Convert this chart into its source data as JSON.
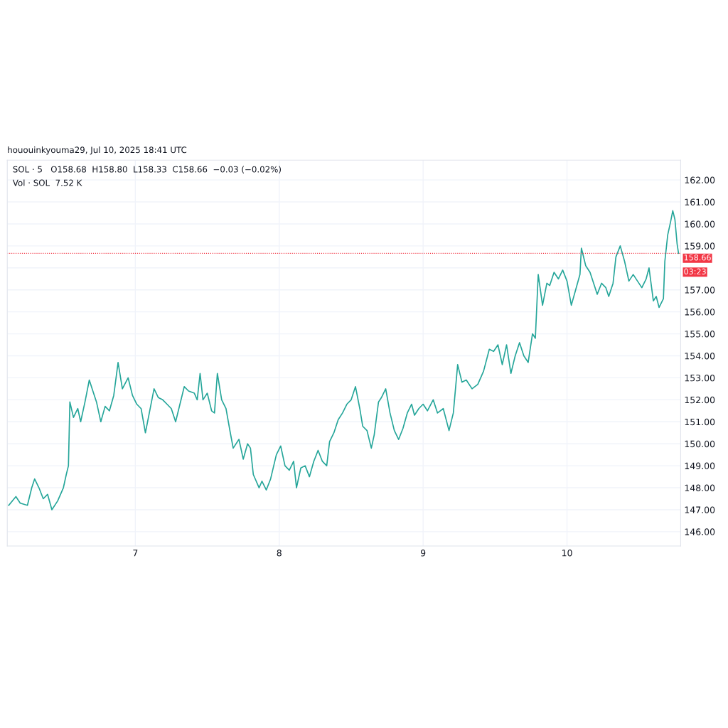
{
  "chart_data": {
    "type": "line",
    "title": "hououinkyouma29, Jul 10, 2025 18:41 UTC",
    "subtitle": "SOL · 5   O158.68  H158.80  L158.33  C158.66  −0.03 (−0.02%)",
    "annotations": [
      "Vol · SOL  7.52 K",
      "03:23"
    ],
    "x": [
      6.12,
      6.17,
      6.2,
      6.25,
      6.28,
      6.3,
      6.33,
      6.36,
      6.39,
      6.42,
      6.46,
      6.5,
      6.52,
      6.535,
      6.545,
      6.57,
      6.6,
      6.62,
      6.65,
      6.68,
      6.7,
      6.73,
      6.76,
      6.79,
      6.82,
      6.85,
      6.88,
      6.91,
      6.95,
      6.98,
      7.01,
      7.04,
      7.07,
      7.1,
      7.13,
      7.16,
      7.19,
      7.22,
      7.25,
      7.28,
      7.31,
      7.34,
      7.37,
      7.41,
      7.43,
      7.45,
      7.47,
      7.5,
      7.53,
      7.55,
      7.57,
      7.6,
      7.63,
      7.66,
      7.68,
      7.72,
      7.75,
      7.78,
      7.8,
      7.82,
      7.86,
      7.88,
      7.91,
      7.94,
      7.98,
      8.01,
      8.04,
      8.07,
      8.1,
      8.12,
      8.15,
      8.18,
      8.21,
      8.24,
      8.27,
      8.3,
      8.33,
      8.35,
      8.38,
      8.41,
      8.44,
      8.47,
      8.5,
      8.53,
      8.56,
      8.58,
      8.61,
      8.64,
      8.66,
      8.69,
      8.71,
      8.74,
      8.77,
      8.8,
      8.83,
      8.86,
      8.89,
      8.92,
      8.94,
      8.97,
      9.0,
      9.03,
      9.07,
      9.1,
      9.14,
      9.18,
      9.21,
      9.24,
      9.27,
      9.3,
      9.34,
      9.38,
      9.42,
      9.46,
      9.49,
      9.52,
      9.55,
      9.58,
      9.61,
      9.64,
      9.67,
      9.7,
      9.73,
      9.76,
      9.78,
      9.8,
      9.83,
      9.86,
      9.88,
      9.91,
      9.94,
      9.97,
      10.0,
      10.03,
      10.06,
      10.09,
      10.1,
      10.13,
      10.16,
      10.19,
      10.21,
      10.24,
      10.27,
      10.29,
      10.32,
      10.34,
      10.37,
      10.4,
      10.43,
      10.46,
      10.49,
      10.52,
      10.55,
      10.57,
      10.6,
      10.62,
      10.64,
      10.67,
      10.68,
      10.7,
      10.72,
      10.735,
      10.75,
      10.765,
      10.775
    ],
    "series": [
      {
        "color": "#26a69a",
        "values": [
          147.2,
          147.6,
          147.3,
          147.2,
          148.0,
          148.4,
          148.0,
          147.5,
          147.7,
          147.0,
          147.4,
          148.0,
          148.6,
          149.0,
          151.9,
          151.2,
          151.6,
          151.0,
          151.9,
          152.9,
          152.5,
          151.9,
          151.0,
          151.7,
          151.5,
          152.2,
          153.7,
          152.5,
          153.0,
          152.2,
          151.8,
          151.6,
          150.5,
          151.5,
          152.5,
          152.1,
          152.0,
          151.8,
          151.6,
          151.0,
          151.8,
          152.6,
          152.4,
          152.3,
          152.0,
          153.2,
          152.0,
          152.3,
          151.5,
          151.4,
          153.2,
          152.0,
          151.6,
          150.5,
          149.8,
          150.2,
          149.3,
          150.0,
          149.8,
          148.6,
          148.0,
          148.3,
          147.9,
          148.4,
          149.5,
          149.9,
          149.0,
          148.8,
          149.2,
          148.0,
          148.9,
          149.0,
          148.5,
          149.2,
          149.7,
          149.2,
          149.0,
          150.1,
          150.5,
          151.1,
          151.4,
          151.8,
          152.0,
          152.6,
          151.6,
          150.8,
          150.6,
          149.8,
          150.4,
          151.9,
          152.1,
          152.5,
          151.4,
          150.6,
          150.2,
          150.7,
          151.4,
          151.8,
          151.3,
          151.6,
          151.8,
          151.5,
          152.0,
          151.4,
          151.6,
          150.6,
          151.4,
          153.6,
          152.8,
          152.9,
          152.5,
          152.7,
          153.3,
          154.3,
          154.2,
          154.5,
          153.6,
          154.5,
          153.2,
          154.0,
          154.6,
          154.0,
          153.7,
          155.0,
          154.8,
          157.7,
          156.3,
          157.3,
          157.2,
          157.8,
          157.5,
          157.9,
          157.4,
          156.3,
          157.0,
          157.7,
          158.9,
          158.1,
          157.8,
          157.2,
          156.8,
          157.3,
          157.1,
          156.7,
          157.3,
          158.5,
          159.0,
          158.3,
          157.4,
          157.7,
          157.4,
          157.1,
          157.5,
          158.0,
          156.5,
          156.7,
          156.2,
          156.6,
          158.3,
          159.5,
          160.1,
          160.6,
          160.2,
          159.1,
          158.66
        ]
      }
    ],
    "xlim": [
      6.11,
      10.79
    ],
    "xticks": [
      7,
      8,
      9,
      10
    ],
    "ylim": [
      145.35,
      162.9
    ],
    "yticks": [
      {
        "value": 146,
        "label": "146.00"
      },
      {
        "value": 147,
        "label": "147.00"
      },
      {
        "value": 148,
        "label": "148.00"
      },
      {
        "value": 149,
        "label": "149.00"
      },
      {
        "value": 150,
        "label": "150.00"
      },
      {
        "value": 151,
        "label": "151.00"
      },
      {
        "value": 152,
        "label": "152.00"
      },
      {
        "value": 153,
        "label": "153.00"
      },
      {
        "value": 154,
        "label": "154.00"
      },
      {
        "value": 155,
        "label": "155.00"
      },
      {
        "value": 156,
        "label": "156.00"
      },
      {
        "value": 157,
        "label": "157.00"
      },
      {
        "value": 158,
        "label": null
      },
      {
        "value": 159,
        "label": "159.00"
      },
      {
        "value": 160,
        "label": "160.00"
      },
      {
        "value": 161,
        "label": "161.00"
      },
      {
        "value": 162,
        "label": "162.00"
      }
    ],
    "ref_lines": [
      {
        "axis": "y",
        "value": 158.66,
        "label": "158.66",
        "color": "#f23645",
        "line_style": "dotted"
      }
    ],
    "grid": true,
    "line_style": "solid"
  }
}
